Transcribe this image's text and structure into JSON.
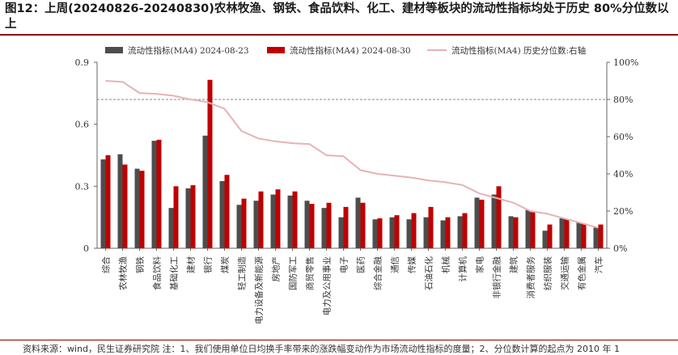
{
  "figure": {
    "title": "图12：上周(20240826-20240830)农林牧渔、钢铁、食品饮料、化工、建材等板块的流动性指标均处于历史 80%分位数以上",
    "source": "资料来源：wind，民生证券研究院   注：1、我们使用单位日均换手率带来的涨跌幅变动作为市场流动性指标的度量；2、分位数计算的起点为 2010 年 1"
  },
  "colors": {
    "series1": "#4d4d4d",
    "series2": "#c00000",
    "series3": "#e6b3b3",
    "title_rule": "#8b0000",
    "threshold": "#888888"
  },
  "chart_data": {
    "type": "bar",
    "categories": [
      "综合",
      "农林牧渔",
      "钢铁",
      "食品饮料",
      "基础化工",
      "建材",
      "银行",
      "煤炭",
      "轻工制造",
      "电力设备及新能源",
      "房地产",
      "国防军工",
      "商贸零售",
      "电力及公用事业",
      "电子",
      "医药",
      "综合金融",
      "通信",
      "传媒",
      "石油石化",
      "机械",
      "计算机",
      "家电",
      "非银行金融",
      "建筑",
      "消费者服务",
      "纺织服装",
      "交通运输",
      "有色金属",
      "汽车"
    ],
    "series": [
      {
        "name": "流动性指标(MA4) 2024-08-23",
        "type": "bar",
        "axis": "left",
        "values": [
          0.43,
          0.455,
          0.385,
          0.52,
          0.195,
          0.29,
          0.545,
          0.325,
          0.21,
          0.23,
          0.26,
          0.255,
          0.23,
          0.195,
          0.15,
          0.245,
          0.14,
          0.15,
          0.14,
          0.15,
          0.135,
          0.155,
          0.245,
          0.26,
          0.155,
          0.185,
          0.085,
          0.145,
          0.125,
          0.1
        ]
      },
      {
        "name": "流动性指标(MA4) 2024-08-30",
        "type": "bar",
        "axis": "left",
        "values": [
          0.45,
          0.405,
          0.375,
          0.525,
          0.3,
          0.305,
          0.815,
          0.355,
          0.24,
          0.275,
          0.285,
          0.275,
          0.215,
          0.22,
          0.2,
          0.22,
          0.145,
          0.16,
          0.17,
          0.2,
          0.15,
          0.17,
          0.235,
          0.3,
          0.15,
          0.175,
          0.115,
          0.14,
          0.12,
          0.115
        ]
      },
      {
        "name": "流动性指标(MA4) 历史分位数:右轴",
        "type": "line",
        "axis": "right",
        "values": [
          90,
          89.5,
          83.5,
          83,
          82,
          80,
          78.5,
          75,
          63,
          59,
          57.5,
          56.5,
          56,
          50,
          49.5,
          42,
          40,
          39,
          38,
          36.5,
          35.5,
          34,
          29.5,
          27,
          24.5,
          20,
          18.5,
          16,
          13.5,
          11
        ]
      }
    ],
    "ylim_left": [
      0,
      0.9
    ],
    "yticks_left": [
      "0",
      "0.3",
      "0.6",
      "0.9"
    ],
    "ylim_right": [
      0,
      100
    ],
    "yticks_right": [
      "0%",
      "20%",
      "40%",
      "60%",
      "80%",
      "100%"
    ],
    "reference_line": 80,
    "legend_position": "top",
    "grid": false
  }
}
